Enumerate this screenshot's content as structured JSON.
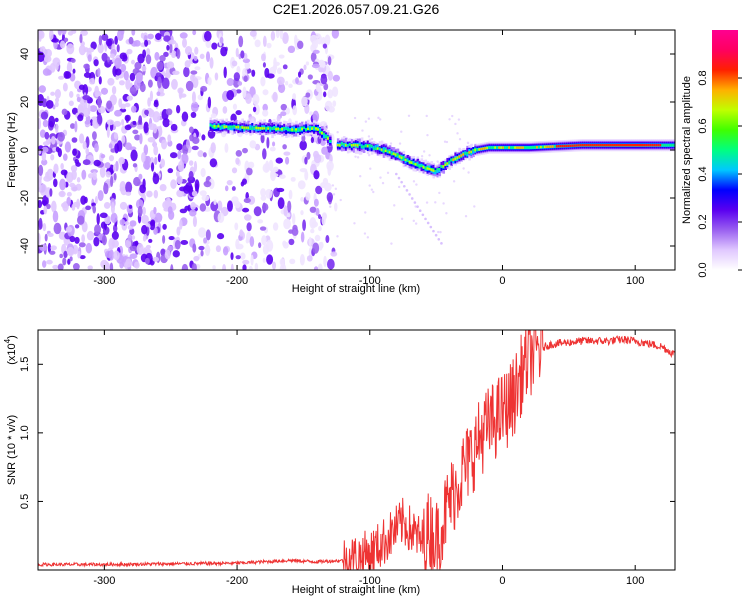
{
  "figure": {
    "title": "C2E1.2026.057.09.21.G26"
  },
  "chart_data": [
    {
      "type": "heatmap",
      "title": "C2E1.2026.057.09.21.G26",
      "xlabel": "Height of straight line (km)",
      "ylabel": "Frequency (Hz)",
      "xlim": [
        -350,
        130
      ],
      "ylim": [
        -50,
        50
      ],
      "xticks": [
        -300,
        -200,
        -100,
        0,
        100
      ],
      "yticks": [
        -40,
        -20,
        0,
        20,
        40
      ],
      "colorbar": {
        "label": "Normalized spectral amplitude",
        "range": [
          0.0,
          1.0
        ],
        "ticks": [
          0.0,
          0.2,
          0.4,
          0.6,
          0.8
        ],
        "tick_labels": [
          "0.0",
          "0.2",
          "0.4",
          "0.6",
          "0.8"
        ],
        "colors": [
          "#ffffff",
          "#e0c8ff",
          "#9a60f0",
          "#5a00f0",
          "#0000ff",
          "#00c8ff",
          "#00ff80",
          "#40ff00",
          "#c0ff00",
          "#ffb000",
          "#ff2000",
          "#ff0060",
          "#ff0090"
        ]
      },
      "ridge": {
        "x": [
          -220,
          -200,
          -180,
          -160,
          -140,
          -130,
          -125,
          -110,
          -100,
          -90,
          -80,
          -70,
          -60,
          -50,
          -45,
          -40,
          -30,
          -20,
          -10,
          0,
          20,
          40,
          60,
          80,
          100,
          120,
          130
        ],
        "y": [
          10,
          9.5,
          9,
          8.5,
          9,
          4,
          2,
          2,
          1.5,
          0,
          -2,
          -5,
          -7,
          -9,
          -7,
          -5,
          -2,
          0,
          1,
          1,
          1,
          1.5,
          2,
          2,
          2,
          2,
          2
        ]
      }
    },
    {
      "type": "line",
      "xlabel": "Height of straight line (km)",
      "ylabel": "SNR (10 * v/v)",
      "multiplier": "(x10",
      "multiplier_exp": "4",
      "multiplier_close": ")",
      "xlim": [
        -350,
        130
      ],
      "ylim": [
        0,
        1.75
      ],
      "xticks": [
        -300,
        -200,
        -100,
        0,
        100
      ],
      "yticks": [
        0.5,
        1.0,
        1.5
      ],
      "ytick_labels": [
        "0.5",
        "1.0",
        "1.5"
      ],
      "color": "#ee3333",
      "series": [
        {
          "name": "SNR",
          "x": [
            -350,
            -300,
            -250,
            -200,
            -180,
            -160,
            -140,
            -120,
            -110,
            -100,
            -95,
            -90,
            -85,
            -80,
            -75,
            -70,
            -65,
            -60,
            -55,
            -50,
            -45,
            -40,
            -35,
            -30,
            -25,
            -20,
            -15,
            -10,
            -5,
            0,
            5,
            10,
            15,
            20,
            25,
            30,
            35,
            40,
            50,
            60,
            70,
            80,
            90,
            100,
            110,
            120,
            125,
            130
          ],
          "values": [
            0.04,
            0.04,
            0.045,
            0.05,
            0.06,
            0.07,
            0.06,
            0.07,
            0.09,
            0.12,
            0.16,
            0.2,
            0.25,
            0.3,
            0.35,
            0.3,
            0.25,
            0.2,
            0.3,
            0.22,
            0.35,
            0.5,
            0.6,
            0.72,
            0.8,
            0.9,
            1.0,
            1.05,
            1.1,
            1.15,
            1.2,
            1.3,
            1.45,
            1.55,
            1.6,
            1.62,
            1.64,
            1.65,
            1.66,
            1.67,
            1.67,
            1.67,
            1.68,
            1.67,
            1.65,
            1.63,
            1.6,
            1.57
          ]
        }
      ]
    }
  ]
}
